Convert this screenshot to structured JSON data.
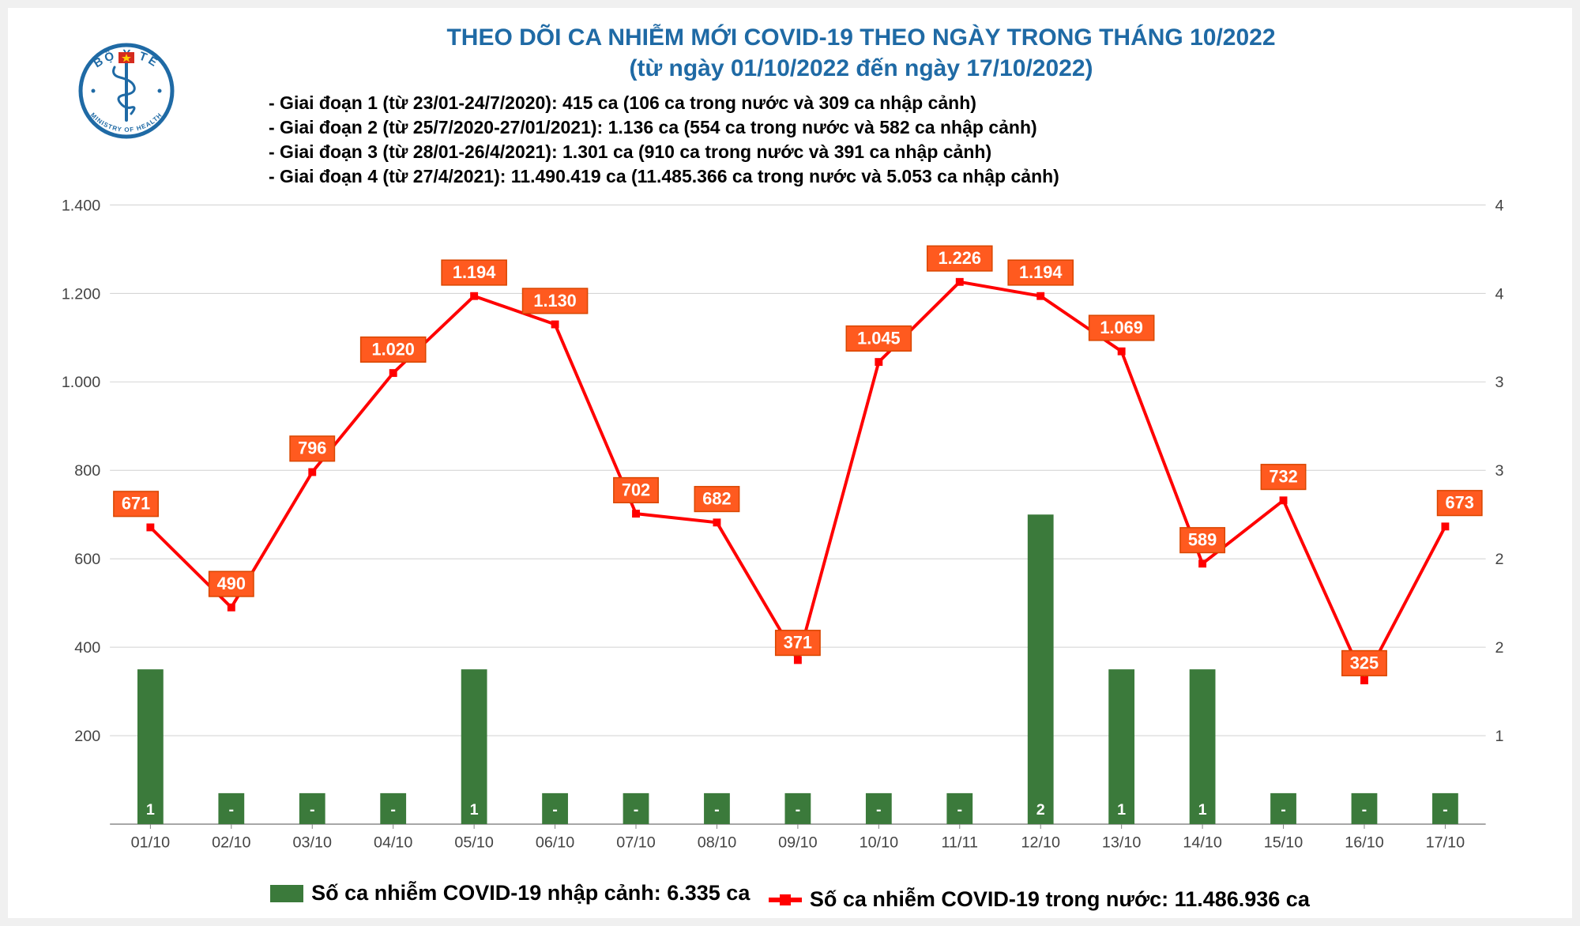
{
  "title": {
    "line1": "THEO DÕI CA NHIỄM MỚI COVID-19 THEO NGÀY TRONG THÁNG 10/2022",
    "line2": "(từ ngày 01/10/2022 đến ngày 17/10/2022)",
    "color": "#1f6aa5",
    "fontsize": 30
  },
  "phases": [
    "- Giai đoạn 1 (từ 23/01-24/7/2020): 415 ca (106 ca trong nước và 309 ca nhập cảnh)",
    "- Giai đoạn 2 (từ 25/7/2020-27/01/2021): 1.136 ca (554 ca trong nước và 582 ca nhập cảnh)",
    "- Giai đoạn 3 (từ 28/01-26/4/2021): 1.301 ca (910 ca trong nước và 391 ca nhập cảnh)",
    "- Giai đoạn 4 (từ 27/4/2021): 11.490.419 ca (11.485.366 ca trong nước và 5.053 ca nhập cảnh)"
  ],
  "phases_fontsize": 23,
  "chart": {
    "type": "combo-bar-line",
    "categories": [
      "01/10",
      "02/10",
      "03/10",
      "04/10",
      "05/10",
      "06/10",
      "07/10",
      "08/10",
      "09/10",
      "10/10",
      "11/11",
      "12/10",
      "13/10",
      "14/10",
      "15/10",
      "16/10",
      "17/10"
    ],
    "line_values": [
      671,
      490,
      796,
      1020,
      1194,
      1130,
      702,
      682,
      371,
      1045,
      1226,
      1194,
      1069,
      589,
      732,
      325,
      673
    ],
    "line_labels": [
      "671",
      "490",
      "796",
      "1.020",
      "1.194",
      "1.130",
      "702",
      "682",
      "371",
      "1.045",
      "1.226",
      "1.194",
      "1.069",
      "589",
      "732",
      "325",
      "673"
    ],
    "bar_values": [
      1,
      0,
      0,
      0,
      1,
      0,
      0,
      0,
      0,
      0,
      0,
      2,
      1,
      1,
      0,
      0,
      0
    ],
    "bar_labels": [
      "1",
      "-",
      "-",
      "-",
      "1",
      "-",
      "-",
      "-",
      "-",
      "-",
      "-",
      "2",
      "1",
      "1",
      "-",
      "-",
      "-"
    ],
    "y_left": {
      "min": 0,
      "max": 1400,
      "step": 200,
      "labels": [
        "200",
        "400",
        "600",
        "800",
        "1.000",
        "1.200",
        "1.400"
      ]
    },
    "y_right": {
      "min": 0,
      "max": 4,
      "ticks": [
        1,
        2,
        2,
        3,
        3,
        4,
        4
      ]
    },
    "line_color": "#ff0000",
    "line_width": 4,
    "marker_size": 10,
    "data_label_bg": "#ff5a1f",
    "data_label_color": "#ffffff",
    "data_label_fontsize": 22,
    "data_label_border": "#d84600",
    "bar_color": "#3b7a3b",
    "bar_width": 0.32,
    "grid_color": "#d0d0d0",
    "axis_color": "#808080",
    "axis_fontsize": 20,
    "background": "#ffffff"
  },
  "legend": {
    "bar_text": "Số ca nhiễm COVID-19 nhập cảnh: 6.335 ca",
    "line_text": "Số ca nhiễm COVID-19 trong nước: 11.486.936 ca",
    "fontsize": 27,
    "text_color": "#000000"
  },
  "logo": {
    "ring_color": "#1f6aa5",
    "snake_color": "#1f6aa5",
    "flag_red": "#d52b1e",
    "star_yellow": "#ffcc00",
    "text_top": "BỘ Y TẾ",
    "text_bottom": "MINISTRY OF HEALTH"
  }
}
